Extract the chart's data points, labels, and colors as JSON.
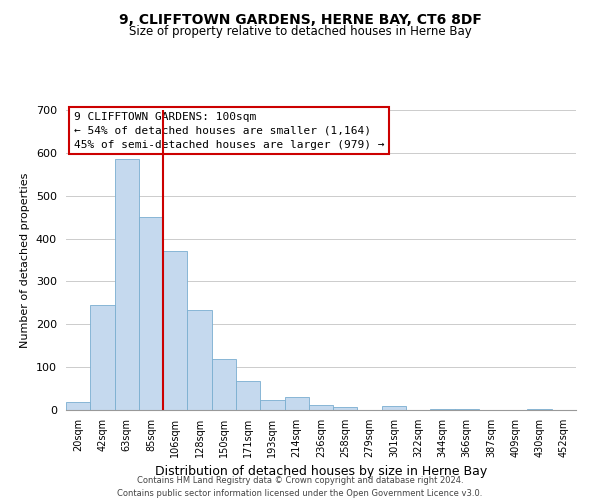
{
  "title": "9, CLIFFTOWN GARDENS, HERNE BAY, CT6 8DF",
  "subtitle": "Size of property relative to detached houses in Herne Bay",
  "xlabel": "Distribution of detached houses by size in Herne Bay",
  "ylabel": "Number of detached properties",
  "bar_color": "#c5d9ee",
  "bar_edge_color": "#7aaed0",
  "categories": [
    "20sqm",
    "42sqm",
    "63sqm",
    "85sqm",
    "106sqm",
    "128sqm",
    "150sqm",
    "171sqm",
    "193sqm",
    "214sqm",
    "236sqm",
    "258sqm",
    "279sqm",
    "301sqm",
    "322sqm",
    "344sqm",
    "366sqm",
    "387sqm",
    "409sqm",
    "430sqm",
    "452sqm"
  ],
  "values": [
    18,
    245,
    585,
    450,
    370,
    233,
    120,
    67,
    23,
    30,
    12,
    8,
    0,
    10,
    0,
    3,
    3,
    0,
    0,
    2,
    0
  ],
  "ylim": [
    0,
    700
  ],
  "yticks": [
    0,
    100,
    200,
    300,
    400,
    500,
    600,
    700
  ],
  "marker_index": 4,
  "marker_color": "#cc0000",
  "annotation_title": "9 CLIFFTOWN GARDENS: 100sqm",
  "annotation_line1": "← 54% of detached houses are smaller (1,164)",
  "annotation_line2": "45% of semi-detached houses are larger (979) →",
  "annotation_box_color": "#ffffff",
  "annotation_box_edge": "#cc0000",
  "footer_line1": "Contains HM Land Registry data © Crown copyright and database right 2024.",
  "footer_line2": "Contains public sector information licensed under the Open Government Licence v3.0.",
  "background_color": "#ffffff",
  "grid_color": "#cccccc"
}
